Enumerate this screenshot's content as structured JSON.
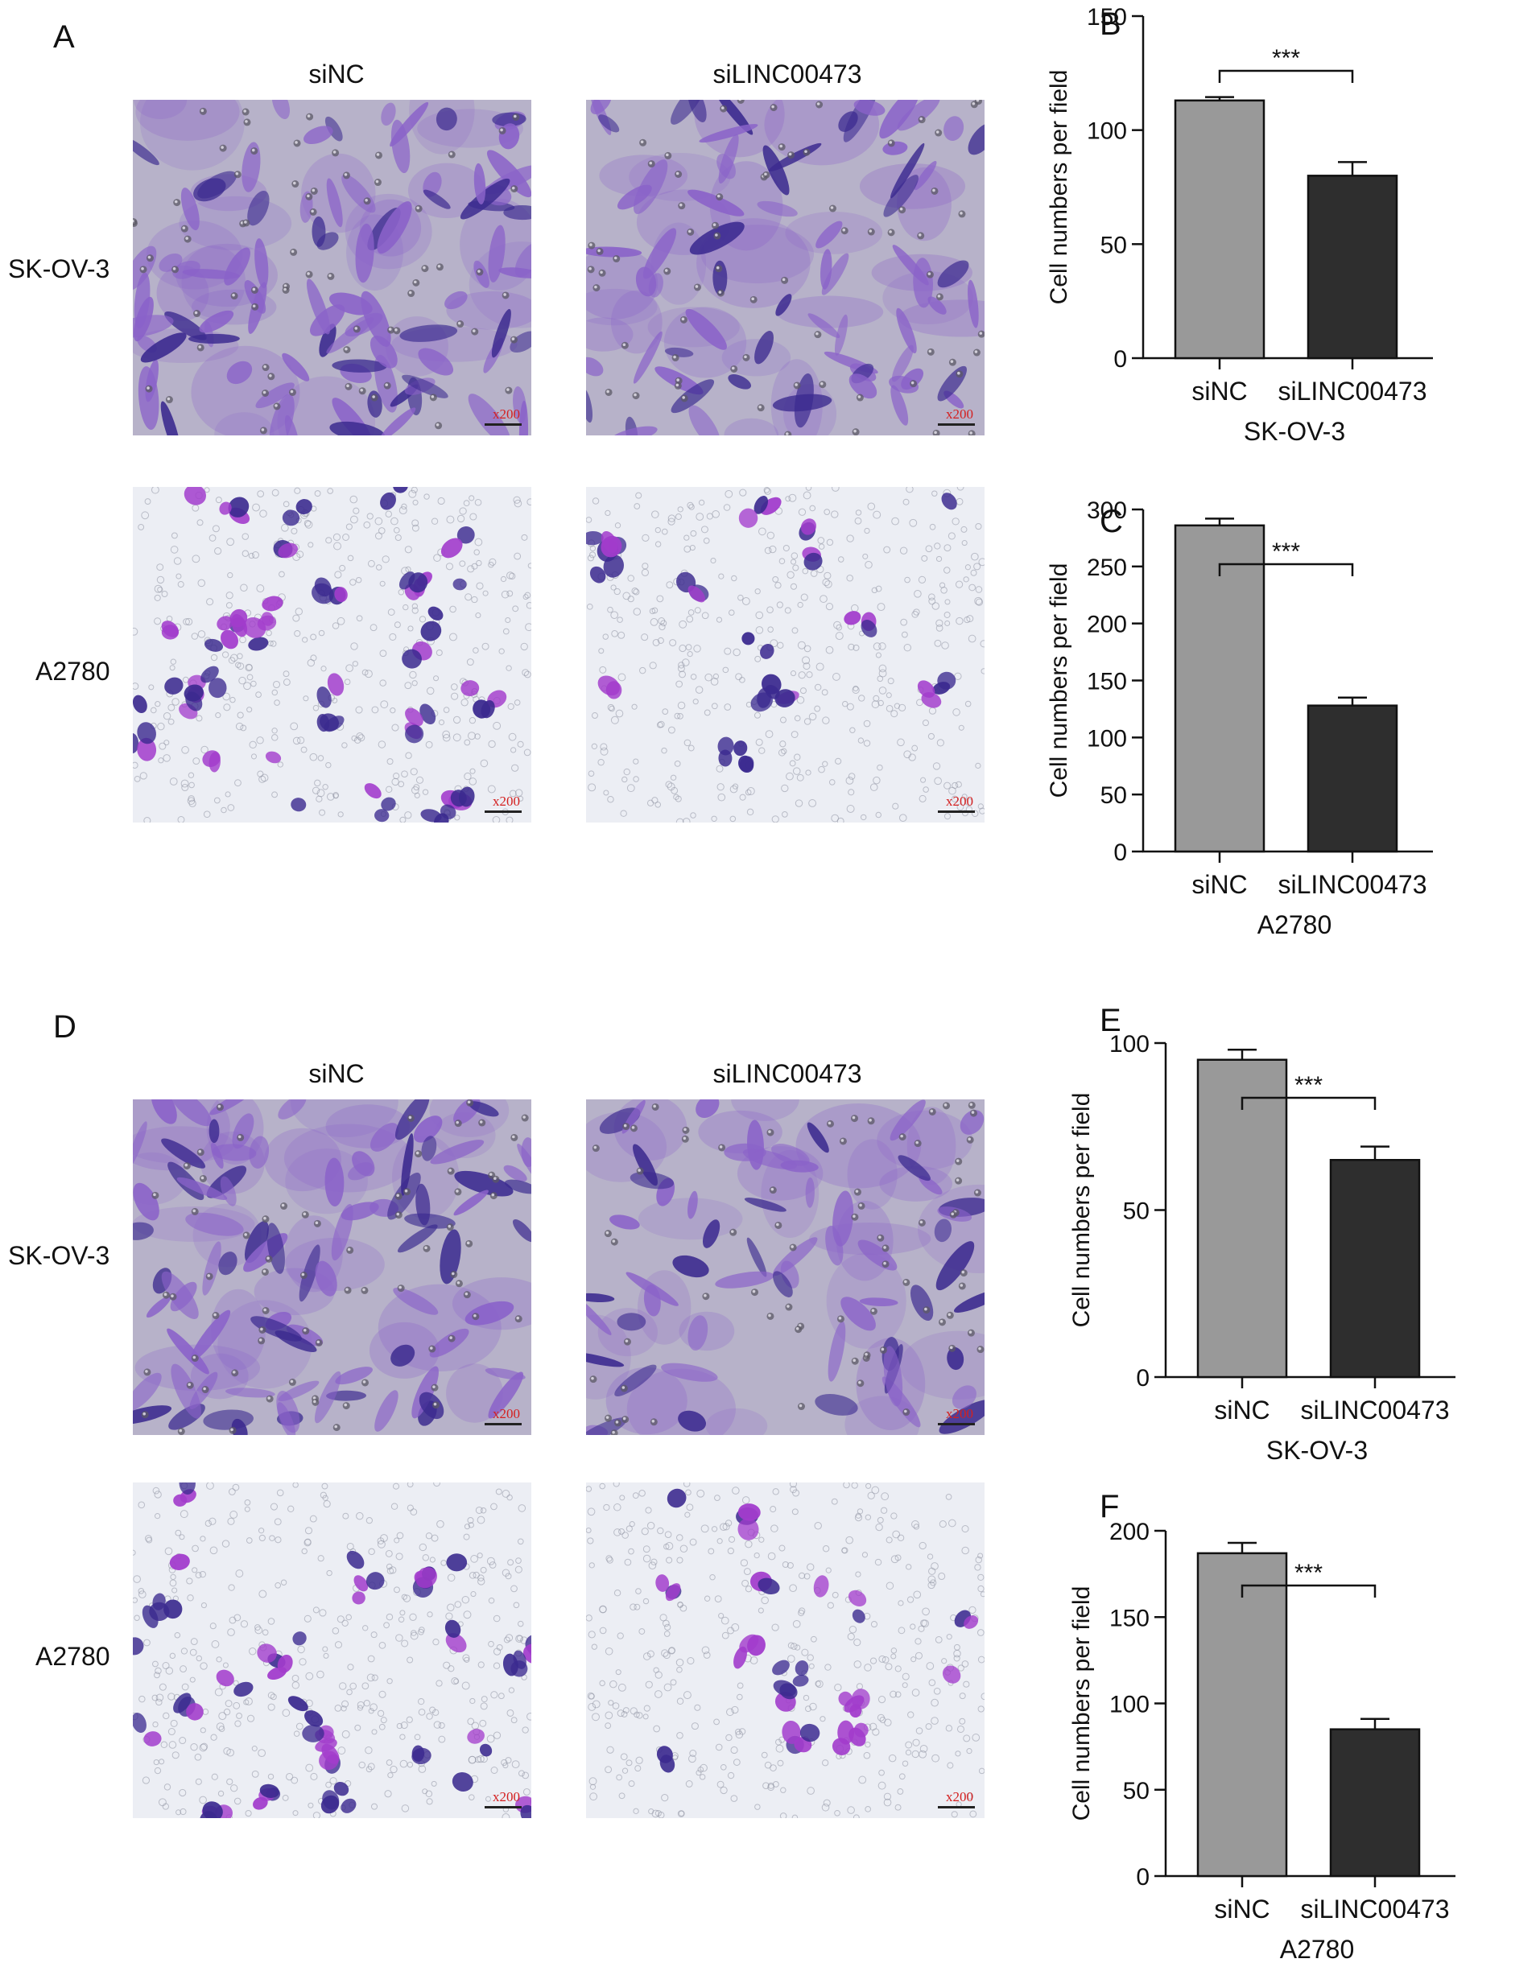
{
  "panel_labels": [
    "A",
    "B",
    "C",
    "D",
    "E",
    "F"
  ],
  "column_labels": [
    "siNC",
    "siLINC00473"
  ],
  "row_labels": [
    "SK-OV-3",
    "A2780"
  ],
  "magnification_label": "x200",
  "colors": {
    "bar_siNC": "#999999",
    "bar_siLINC": "#2e2e2e",
    "stain_dark": "#3b2a8f",
    "stain_light": "#8a62c9",
    "stain_magenta": "#a23ccc",
    "sk_background": "#b7b2c9",
    "a2780_background": "#eceef4"
  },
  "chart_data": [
    {
      "panel": "B",
      "type": "bar",
      "categories": [
        "siNC",
        "siLINC00473"
      ],
      "values": [
        113,
        80
      ],
      "errors": [
        1.5,
        6
      ],
      "ylabel": "Cell numbers per field",
      "xlabel": "SK-OV-3",
      "ylim": [
        0,
        150
      ],
      "yticks": [
        0,
        50,
        100,
        150
      ],
      "significance": "***"
    },
    {
      "panel": "C",
      "type": "bar",
      "categories": [
        "siNC",
        "siLINC00473"
      ],
      "values": [
        286,
        128
      ],
      "errors": [
        6,
        7
      ],
      "ylabel": "Cell numbers per field",
      "xlabel": "A2780",
      "ylim": [
        0,
        300
      ],
      "yticks": [
        0,
        50,
        100,
        150,
        200,
        250,
        300
      ],
      "significance": "***"
    },
    {
      "panel": "E",
      "type": "bar",
      "categories": [
        "siNC",
        "siLINC00473"
      ],
      "values": [
        95,
        65
      ],
      "errors": [
        3,
        4
      ],
      "ylabel": "Cell numbers per field",
      "xlabel": "SK-OV-3",
      "ylim": [
        0,
        100
      ],
      "yticks": [
        0,
        50,
        100
      ],
      "significance": "***"
    },
    {
      "panel": "F",
      "type": "bar",
      "categories": [
        "siNC",
        "siLINC00473"
      ],
      "values": [
        187,
        85
      ],
      "errors": [
        6,
        6
      ],
      "ylabel": "Cell numbers per field",
      "xlabel": "A2780",
      "ylim": [
        0,
        200
      ],
      "yticks": [
        0,
        50,
        100,
        150,
        200
      ],
      "significance": "***"
    }
  ]
}
